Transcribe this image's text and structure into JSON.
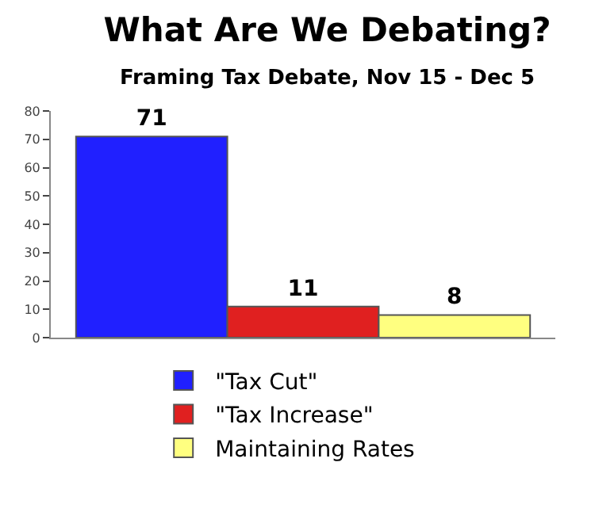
{
  "chart_data": {
    "type": "bar",
    "title": "What Are We Debating?",
    "subtitle": "Framing Tax Debate, Nov 15 - Dec 5",
    "categories": [
      null
    ],
    "series": [
      {
        "name": "\"Tax Cut\"",
        "color": "#2020ff",
        "values": [
          71
        ]
      },
      {
        "name": "\"Tax Increase\"",
        "color": "#e02020",
        "values": [
          11
        ]
      },
      {
        "name": "Maintaining Rates",
        "color": "#ffff80",
        "values": [
          8
        ]
      }
    ],
    "ylim": [
      0,
      80
    ],
    "yticks": [
      0,
      10,
      20,
      30,
      40,
      50,
      60,
      70,
      80
    ],
    "legend": "bottom",
    "data_labels": true
  }
}
